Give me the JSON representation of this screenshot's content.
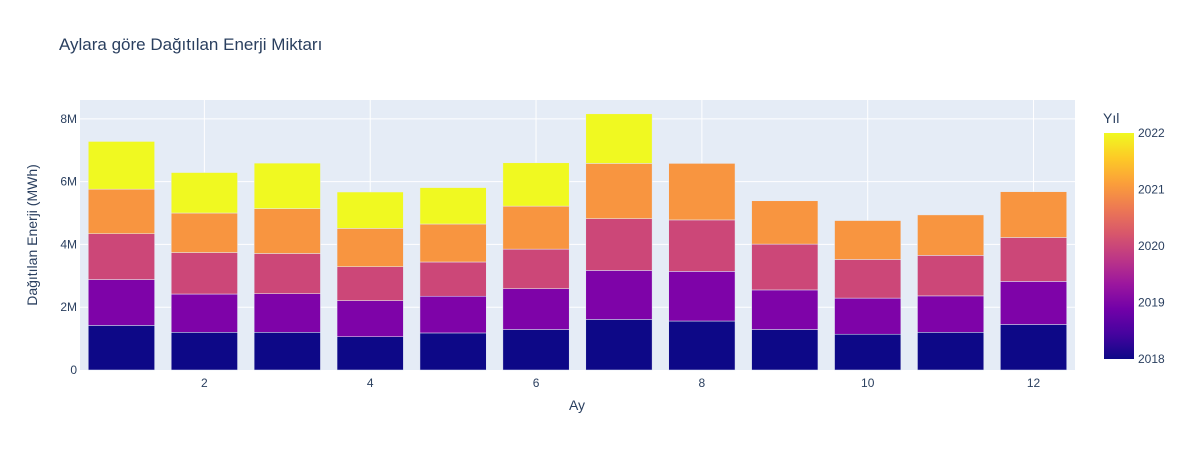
{
  "chart_data": {
    "type": "bar",
    "stacked": true,
    "title": "Aylara göre Dağıtılan Enerji Miktarı",
    "xlabel": "Ay",
    "ylabel": "Dağıtılan Enerji (MWh)",
    "ylim": [
      0,
      8600000
    ],
    "yticks": [
      0,
      2000000,
      4000000,
      6000000,
      8000000
    ],
    "ytick_labels": [
      "0",
      "2M",
      "4M",
      "6M",
      "8M"
    ],
    "xticks": [
      2,
      4,
      6,
      8,
      10,
      12
    ],
    "xtick_labels": [
      "2",
      "4",
      "6",
      "8",
      "10",
      "12"
    ],
    "categories": [
      1,
      2,
      3,
      4,
      5,
      6,
      7,
      8,
      9,
      10,
      11,
      12
    ],
    "grid": true,
    "series": [
      {
        "year": 2018,
        "color": "#0d0887",
        "values": [
          1420000,
          1200000,
          1200000,
          1060000,
          1180000,
          1290000,
          1610000,
          1560000,
          1290000,
          1140000,
          1200000,
          1450000
        ]
      },
      {
        "year": 2019,
        "color": "#7e03a8",
        "values": [
          1460000,
          1220000,
          1230000,
          1150000,
          1170000,
          1300000,
          1560000,
          1580000,
          1260000,
          1150000,
          1160000,
          1370000
        ]
      },
      {
        "year": 2020,
        "color": "#cc4778",
        "values": [
          1460000,
          1320000,
          1280000,
          1080000,
          1090000,
          1260000,
          1650000,
          1640000,
          1460000,
          1230000,
          1290000,
          1400000
        ]
      },
      {
        "year": 2021,
        "color": "#f89540",
        "values": [
          1420000,
          1260000,
          1430000,
          1220000,
          1210000,
          1370000,
          1760000,
          1800000,
          1380000,
          1240000,
          1290000,
          1460000
        ]
      },
      {
        "year": 2022,
        "color": "#f0f921",
        "values": [
          1520000,
          1290000,
          1450000,
          1160000,
          1160000,
          1380000,
          1580000,
          0,
          0,
          0,
          0,
          0
        ]
      }
    ],
    "colorbar": {
      "title": "Yıl",
      "ticks": [
        2018,
        2019,
        2020,
        2021,
        2022
      ],
      "tick_labels": [
        "2018",
        "2019",
        "2020",
        "2021",
        "2022"
      ],
      "range": [
        2018,
        2022
      ],
      "colorscale": [
        "#0d0887",
        "#46039f",
        "#7201a8",
        "#9c179e",
        "#bd3786",
        "#d8576b",
        "#ed7953",
        "#fb9f3a",
        "#fdca26",
        "#f0f921"
      ]
    }
  }
}
